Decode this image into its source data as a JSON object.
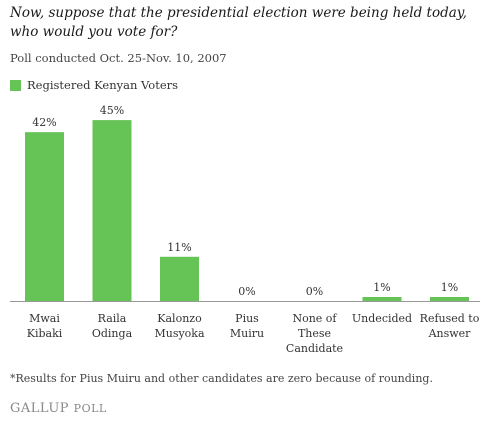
{
  "header": {
    "title": "Now, suppose that the presidential election were being held today, who would you vote for?",
    "subtitle": "Poll conducted Oct. 25-Nov. 10, 2007"
  },
  "legend": {
    "label": "Registered Kenyan Voters",
    "color": "#66c456"
  },
  "footnote": "*Results for Pius Muiru and other candidates are zero because of rounding.",
  "logo": {
    "main": "GALLUP",
    "sub": "POLL"
  },
  "chart_data": {
    "type": "bar",
    "categories": [
      [
        "Mwai",
        "Kibaki"
      ],
      [
        "Raila",
        "Odinga"
      ],
      [
        "Kalonzo",
        "Musyoka"
      ],
      [
        "Pius",
        "Muiru"
      ],
      [
        "None of",
        "These",
        "Candidate"
      ],
      [
        "Undecided"
      ],
      [
        "Refused to",
        "Answer"
      ]
    ],
    "series": [
      {
        "name": "Registered Kenyan Voters",
        "values": [
          42,
          45,
          11,
          0,
          0,
          1,
          1
        ],
        "color": "#66c456"
      }
    ],
    "data_labels": [
      "42%",
      "45%",
      "11%",
      "0%",
      "0%",
      "1%",
      "1%"
    ],
    "ylim": [
      0,
      50
    ],
    "grid": false,
    "legend_position": "top-left"
  }
}
